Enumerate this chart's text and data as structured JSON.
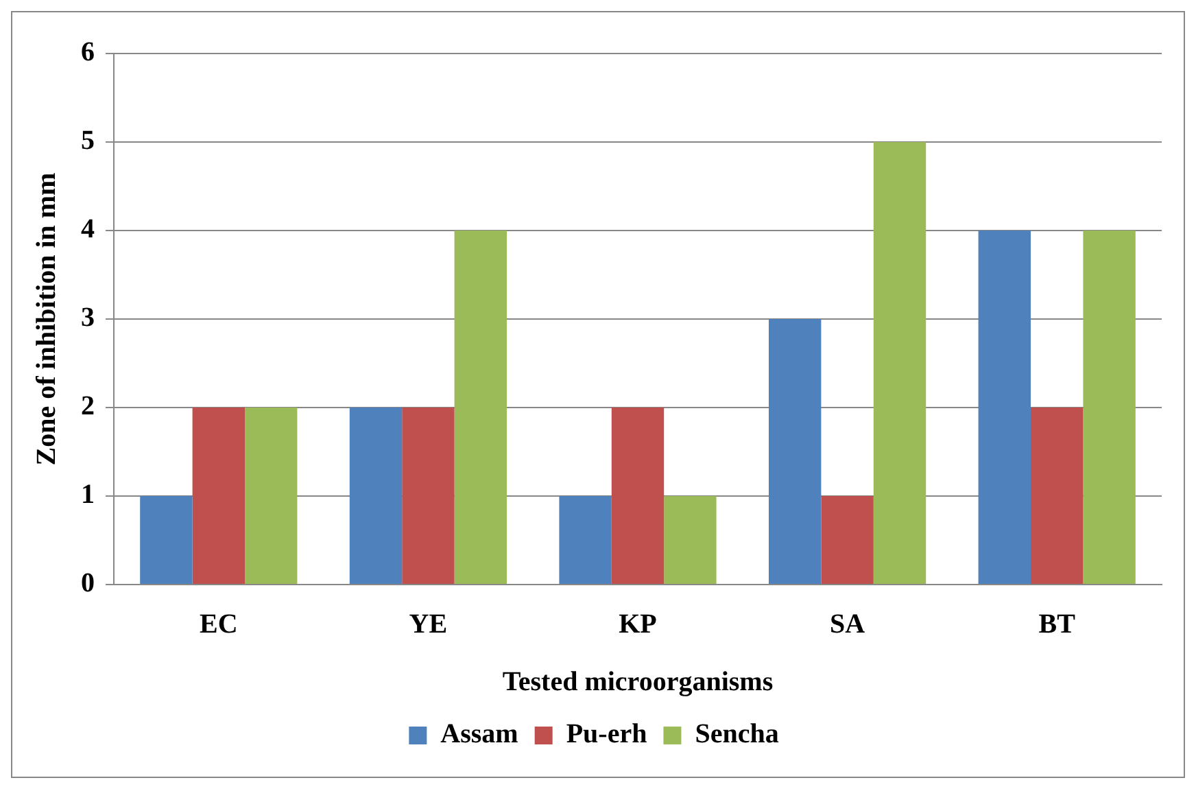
{
  "chart_data": {
    "type": "bar",
    "xlabel": "Tested microorganisms",
    "ylabel": "Zone of inhibition in mm",
    "categories": [
      "EC",
      "YE",
      "KP",
      "SA",
      "BT"
    ],
    "series": [
      {
        "name": "Assam",
        "color": "#4f81bd",
        "values": [
          1,
          2,
          1,
          3,
          4
        ]
      },
      {
        "name": "Pu-erh",
        "color": "#c0504d",
        "values": [
          2,
          2,
          2,
          1,
          2
        ]
      },
      {
        "name": "Sencha",
        "color": "#9bbb59",
        "values": [
          2,
          4,
          1,
          5,
          4
        ]
      }
    ],
    "ylim": [
      0,
      6
    ],
    "yticks": [
      0,
      1,
      2,
      3,
      4,
      5,
      6
    ],
    "grid": "y",
    "legend": "bottom"
  }
}
